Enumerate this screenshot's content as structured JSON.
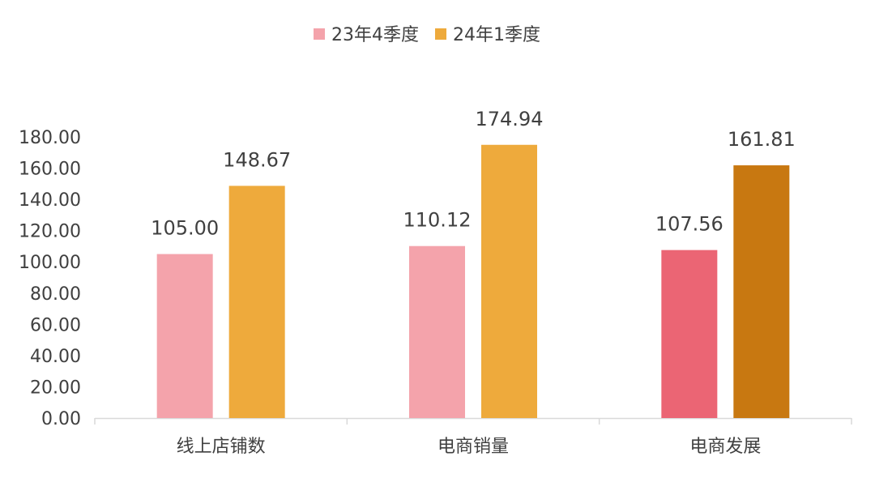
{
  "chart_data": {
    "type": "bar",
    "categories": [
      "线上店铺数",
      "电商销量",
      "电商发展"
    ],
    "series": [
      {
        "name": "23年4季度",
        "values": [
          105.0,
          110.12,
          107.56
        ],
        "value_labels": [
          "105.00",
          "110.12",
          "107.56"
        ],
        "color": "#F4A3AB",
        "point_colors": [
          "#F4A3AB",
          "#F4A3AB",
          "#EB6574"
        ]
      },
      {
        "name": "24年1季度",
        "values": [
          148.67,
          174.94,
          161.81
        ],
        "value_labels": [
          "148.67",
          "174.94",
          "161.81"
        ],
        "color": "#EEAA3C",
        "point_colors": [
          "#EEAA3C",
          "#EEAA3C",
          "#C87811"
        ]
      }
    ],
    "ylim": [
      0,
      180
    ],
    "yticks": [
      "0.00",
      "20.00",
      "40.00",
      "60.00",
      "80.00",
      "100.00",
      "120.00",
      "140.00",
      "160.00",
      "180.00"
    ],
    "ytick_values": [
      0,
      20,
      40,
      60,
      80,
      100,
      120,
      140,
      160,
      180
    ],
    "grid": false,
    "legend_position": "top-center",
    "axis_color": "#D9D9D9",
    "text_color": "#404040"
  }
}
